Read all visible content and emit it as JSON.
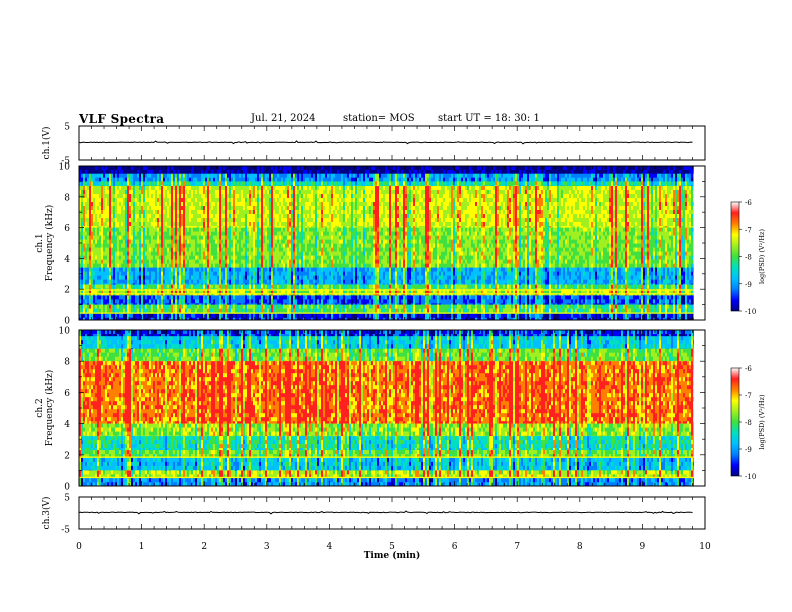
{
  "header": {
    "title": "VLF Spectra",
    "date": "Jul. 21, 2024",
    "station": "station= MOS",
    "start": "start UT = 18: 30: 1"
  },
  "colors": {
    "colormap": [
      "#000080",
      "#0000ff",
      "#0080ff",
      "#00c0ff",
      "#00e0c0",
      "#40e040",
      "#a0f020",
      "#ffff00",
      "#ff8000",
      "#ff2020",
      "#ffffff"
    ],
    "trace": "#000000",
    "frame": "#000000"
  },
  "chart_data": [
    {
      "type": "line",
      "panel": "ch1-waveform",
      "ylabel": "ch.1(V)",
      "ylim": [
        -5,
        5
      ],
      "yticks": [
        "5",
        "-5"
      ],
      "xlim": [
        0,
        10
      ],
      "series": [
        {
          "values_description_level": 0.2
        }
      ]
    },
    {
      "type": "heatmap",
      "panel": "ch1-spectrogram",
      "ylabel_line1": "ch.1",
      "ylabel_line2": "Frequency (kHz)",
      "ylim": [
        0,
        10
      ],
      "yticks": [
        "0",
        "2",
        "4",
        "6",
        "8",
        "10"
      ],
      "xlim": [
        0,
        10
      ],
      "data_end_min": 9.82,
      "colorbar": {
        "label": "log(PSD) (V²/Hz)",
        "range": [
          -10,
          -6
        ],
        "ticks": [
          "-6",
          "-7",
          "-8",
          "-9",
          "-10"
        ]
      },
      "bands": [
        {
          "f": [
            9.5,
            10.0
          ],
          "level": 0.0
        },
        {
          "f": [
            9.0,
            9.5
          ],
          "level": 0.25
        },
        {
          "f": [
            8.7,
            9.0
          ],
          "level": 0.45
        },
        {
          "f": [
            6.0,
            8.7
          ],
          "level": 0.72
        },
        {
          "f": [
            3.4,
            6.0
          ],
          "level": 0.62
        },
        {
          "f": [
            2.3,
            3.4
          ],
          "level": 0.3
        },
        {
          "f": [
            2.0,
            2.3
          ],
          "level": 0.55
        },
        {
          "f": [
            1.6,
            2.0
          ],
          "level": 0.68
        },
        {
          "f": [
            1.0,
            1.6
          ],
          "level": 0.18
        },
        {
          "f": [
            0.4,
            1.0
          ],
          "level": 0.55
        },
        {
          "f": [
            0.0,
            0.4
          ],
          "level": 0.1
        }
      ],
      "lines_khz": [
        1.95,
        1.7,
        0.45
      ]
    },
    {
      "type": "heatmap",
      "panel": "ch2-spectrogram",
      "ylabel_line1": "ch.2",
      "ylabel_line2": "Frequency (kHz)",
      "ylim": [
        0,
        10
      ],
      "yticks": [
        "0",
        "2",
        "4",
        "6",
        "8",
        "10"
      ],
      "xlim": [
        0,
        10
      ],
      "data_end_min": 9.82,
      "colorbar": {
        "label": "log(PSD) (V²/Hz)",
        "range": [
          -10,
          -6
        ],
        "ticks": [
          "-6",
          "-7",
          "-8",
          "-9",
          "-10"
        ]
      },
      "bands": [
        {
          "f": [
            9.6,
            10.0
          ],
          "level": 0.12
        },
        {
          "f": [
            8.8,
            9.6
          ],
          "level": 0.38
        },
        {
          "f": [
            8.0,
            8.8
          ],
          "level": 0.6
        },
        {
          "f": [
            4.0,
            8.0
          ],
          "level": 0.9
        },
        {
          "f": [
            3.2,
            4.0
          ],
          "level": 0.66
        },
        {
          "f": [
            2.3,
            3.2
          ],
          "level": 0.45
        },
        {
          "f": [
            1.8,
            2.3
          ],
          "level": 0.6
        },
        {
          "f": [
            1.0,
            1.8
          ],
          "level": 0.35
        },
        {
          "f": [
            0.5,
            1.0
          ],
          "level": 0.7
        },
        {
          "f": [
            0.0,
            0.5
          ],
          "level": 0.25
        }
      ],
      "lines_khz": [
        1.85,
        0.55
      ]
    },
    {
      "type": "line",
      "panel": "ch3-waveform",
      "ylabel": "ch.3(V)",
      "ylim": [
        -5,
        5
      ],
      "yticks": [
        "5",
        "-5"
      ],
      "xlim": [
        0,
        10
      ],
      "series": [
        {
          "values_description_level": 0.2
        }
      ]
    }
  ],
  "xaxis": {
    "label": "Time (min)",
    "ticks": [
      "0",
      "1",
      "2",
      "3",
      "4",
      "5",
      "6",
      "7",
      "8",
      "9",
      "10"
    ]
  }
}
